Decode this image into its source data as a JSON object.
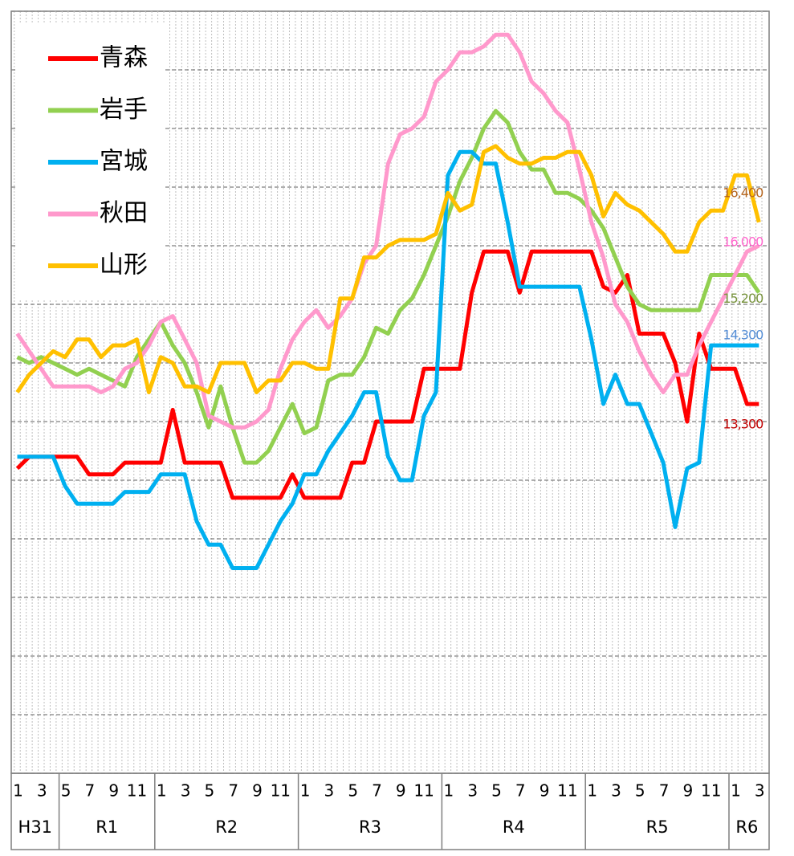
{
  "chart_data": {
    "type": "line",
    "categories": [
      "1",
      null,
      "3",
      null,
      "5",
      null,
      "7",
      null,
      "9",
      null,
      "11",
      null,
      "1",
      null,
      "3",
      null,
      "5",
      null,
      "7",
      null,
      "9",
      null,
      "11",
      null,
      "1",
      null,
      "3",
      null,
      "5",
      null,
      "7",
      null,
      "9",
      null,
      "11",
      null,
      "1",
      null,
      "3",
      null,
      "5",
      null,
      "7",
      null,
      "9",
      null,
      "11",
      null,
      "1",
      null,
      "3",
      null,
      "5",
      null,
      "7",
      null,
      "9",
      null,
      "11",
      null,
      "1",
      null,
      "3"
    ],
    "x_groups": [
      {
        "label": "H31",
        "start": 0
      },
      {
        "label": "R1",
        "start": 4
      },
      {
        "label": "R2",
        "start": 12
      },
      {
        "label": "R3",
        "start": 24
      },
      {
        "label": "R4",
        "start": 36
      },
      {
        "label": "R5",
        "start": 48
      },
      {
        "label": "R6",
        "start": 60
      }
    ],
    "ylim": [
      7000,
      20000
    ],
    "yticks": [
      7000,
      8000,
      9000,
      10000,
      11000,
      12000,
      13000,
      14000,
      15000,
      16000,
      17000,
      18000,
      19000,
      20000
    ],
    "grid": true,
    "legend": "top-left",
    "series": [
      {
        "name": "青森",
        "color": "#ff0000",
        "label_color": "#c00000",
        "values": [
          12200,
          12400,
          12400,
          12400,
          12400,
          12400,
          12100,
          12100,
          12100,
          12300,
          12300,
          12300,
          12300,
          13200,
          12300,
          12300,
          12300,
          12300,
          11700,
          11700,
          11700,
          11700,
          11700,
          12100,
          11700,
          11700,
          11700,
          11700,
          12300,
          12300,
          13000,
          13000,
          13000,
          13000,
          13900,
          13900,
          13900,
          13900,
          15200,
          15900,
          15900,
          15900,
          15200,
          15900,
          15900,
          15900,
          15900,
          15900,
          15900,
          15300,
          15200,
          15500,
          14500,
          14500,
          14500,
          14000,
          13000,
          14500,
          13900,
          13900,
          13900,
          13300,
          13300
        ],
        "value_labels": [
          null,
          null,
          null,
          null,
          null,
          null,
          null,
          null,
          null,
          null,
          null,
          null,
          null,
          null,
          null,
          null,
          null,
          null,
          null,
          null,
          null,
          null,
          null,
          null,
          null,
          null,
          null,
          null,
          null,
          null,
          null,
          null,
          null,
          null,
          null,
          null,
          null,
          null,
          null,
          null,
          null,
          null,
          null,
          null,
          null,
          null,
          null,
          null,
          null,
          null,
          null,
          null,
          null,
          null,
          null,
          null,
          null,
          null,
          null,
          null,
          null,
          null,
          "13,300"
        ]
      },
      {
        "name": "岩手",
        "color": "#92d050",
        "label_color": "#77933c",
        "values": [
          14100,
          14000,
          14100,
          14000,
          13900,
          13800,
          13900,
          13800,
          13700,
          13600,
          14100,
          14400,
          14700,
          14300,
          14000,
          13500,
          12900,
          13600,
          12900,
          12300,
          12300,
          12500,
          12900,
          13300,
          12800,
          12900,
          13700,
          13800,
          13800,
          14100,
          14600,
          14500,
          14900,
          15100,
          15500,
          16000,
          16500,
          17100,
          17500,
          18000,
          18300,
          18100,
          17600,
          17300,
          17300,
          16900,
          16900,
          16800,
          16600,
          16300,
          15800,
          15300,
          15000,
          14900,
          14900,
          14900,
          14900,
          14900,
          15500,
          15500,
          15500,
          15500,
          15200
        ],
        "value_labels": [
          null,
          null,
          null,
          null,
          null,
          null,
          null,
          null,
          null,
          null,
          null,
          null,
          null,
          null,
          null,
          null,
          null,
          null,
          null,
          null,
          null,
          null,
          null,
          null,
          null,
          null,
          null,
          null,
          null,
          null,
          null,
          null,
          null,
          null,
          null,
          null,
          null,
          null,
          null,
          null,
          null,
          null,
          null,
          null,
          null,
          null,
          null,
          null,
          null,
          null,
          null,
          null,
          null,
          null,
          null,
          null,
          null,
          null,
          null,
          null,
          null,
          null,
          "15,200"
        ]
      },
      {
        "name": "宮城",
        "color": "#00b0f0",
        "label_color": "#558ed5",
        "values": [
          12400,
          12400,
          12400,
          12400,
          11900,
          11600,
          11600,
          11600,
          11600,
          11800,
          11800,
          11800,
          12100,
          12100,
          12100,
          11300,
          10900,
          10900,
          10500,
          10500,
          10500,
          10900,
          11300,
          11600,
          12100,
          12100,
          12500,
          12800,
          13100,
          13500,
          13500,
          12400,
          12000,
          12000,
          13100,
          13500,
          17200,
          17600,
          17600,
          17400,
          17400,
          16400,
          15300,
          15300,
          15300,
          15300,
          15300,
          15300,
          14400,
          13300,
          13800,
          13300,
          13300,
          12800,
          12300,
          11200,
          12200,
          12300,
          14300,
          14300,
          14300,
          14300,
          14300
        ],
        "value_labels": [
          null,
          null,
          null,
          null,
          null,
          null,
          null,
          null,
          null,
          null,
          null,
          null,
          null,
          null,
          null,
          null,
          null,
          null,
          null,
          null,
          null,
          null,
          null,
          null,
          null,
          null,
          null,
          null,
          null,
          null,
          null,
          null,
          null,
          null,
          null,
          null,
          null,
          null,
          null,
          null,
          null,
          null,
          null,
          null,
          null,
          null,
          null,
          null,
          null,
          null,
          null,
          null,
          null,
          null,
          null,
          null,
          null,
          null,
          null,
          null,
          null,
          null,
          "14,300"
        ]
      },
      {
        "name": "秋田",
        "color": "#ff99cc",
        "label_color": "#ff66cc",
        "values": [
          14500,
          14200,
          13900,
          13600,
          13600,
          13600,
          13600,
          13500,
          13600,
          13900,
          14000,
          14300,
          14700,
          14800,
          14400,
          14000,
          13100,
          13000,
          12900,
          12900,
          13000,
          13200,
          13900,
          14400,
          14700,
          14900,
          14600,
          14800,
          15100,
          15700,
          16000,
          17400,
          17900,
          18000,
          18200,
          18800,
          19000,
          19300,
          19300,
          19400,
          19600,
          19600,
          19300,
          18800,
          18600,
          18300,
          18100,
          17300,
          16400,
          15800,
          15000,
          14700,
          14200,
          13800,
          13500,
          13800,
          13800,
          14300,
          14700,
          15100,
          15500,
          15900,
          16000
        ],
        "value_labels": [
          null,
          null,
          null,
          null,
          null,
          null,
          null,
          null,
          null,
          null,
          null,
          null,
          null,
          null,
          null,
          null,
          null,
          null,
          null,
          null,
          null,
          null,
          null,
          null,
          null,
          null,
          null,
          null,
          null,
          null,
          null,
          null,
          null,
          null,
          null,
          null,
          null,
          null,
          null,
          null,
          null,
          null,
          null,
          null,
          null,
          null,
          null,
          null,
          null,
          null,
          null,
          null,
          null,
          null,
          null,
          null,
          null,
          null,
          null,
          null,
          null,
          null,
          "16,000"
        ]
      },
      {
        "name": "山形",
        "color": "#ffc000",
        "label_color": "#b5651d",
        "values": [
          13500,
          13800,
          14000,
          14200,
          14100,
          14400,
          14400,
          14100,
          14300,
          14300,
          14400,
          13500,
          14100,
          14000,
          13600,
          13600,
          13500,
          14000,
          14000,
          14000,
          13500,
          13700,
          13700,
          14000,
          14000,
          13900,
          13900,
          15100,
          15100,
          15800,
          15800,
          16000,
          16100,
          16100,
          16100,
          16200,
          16900,
          16600,
          16700,
          17600,
          17700,
          17500,
          17400,
          17400,
          17500,
          17500,
          17600,
          17600,
          17200,
          16500,
          16900,
          16700,
          16600,
          16400,
          16200,
          15900,
          15900,
          16400,
          16600,
          16600,
          17200,
          17200,
          16400
        ],
        "value_labels": [
          null,
          null,
          null,
          null,
          null,
          null,
          null,
          null,
          null,
          null,
          null,
          null,
          null,
          null,
          null,
          null,
          null,
          null,
          null,
          null,
          null,
          null,
          null,
          null,
          null,
          null,
          null,
          null,
          null,
          null,
          null,
          null,
          null,
          null,
          null,
          null,
          null,
          null,
          null,
          null,
          null,
          null,
          null,
          null,
          null,
          null,
          null,
          null,
          null,
          null,
          null,
          null,
          null,
          null,
          null,
          null,
          null,
          null,
          null,
          null,
          null,
          null,
          "16,400"
        ]
      }
    ]
  }
}
